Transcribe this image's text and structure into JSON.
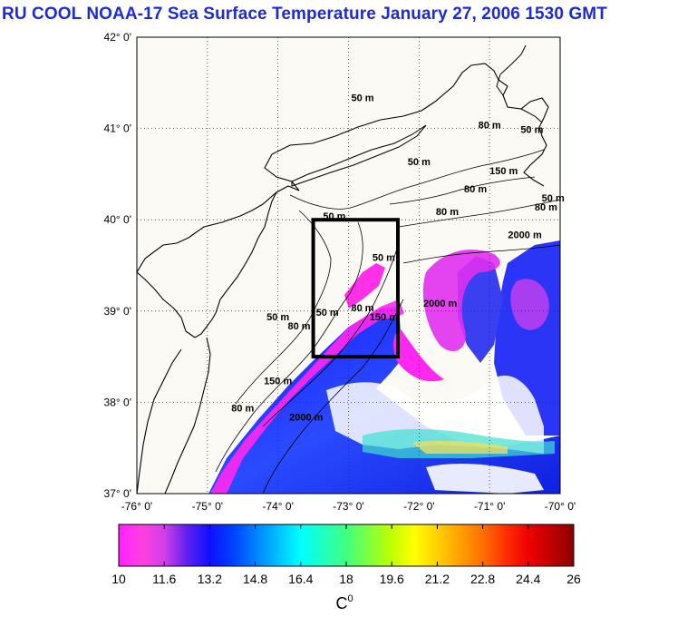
{
  "title": "RU COOL  NOAA-17 Sea Surface Temperature January 27, 2006 1530 GMT",
  "map": {
    "lon_range": [
      -76,
      -70
    ],
    "lat_range": [
      37,
      42
    ],
    "lat_ticks": [
      "42° 0'",
      "41° 0'",
      "40° 0'",
      "39° 0'",
      "38° 0'",
      "37° 0'"
    ],
    "lon_ticks": [
      "-76° 0'",
      "-75° 0'",
      "-74° 0'",
      "-73° 0'",
      "-72° 0'",
      "-71° 0'",
      "-70° 0'"
    ],
    "grid": true,
    "study_box": {
      "lon": [
        -73.5,
        -72.3
      ],
      "lat": [
        38.5,
        40.0
      ]
    },
    "land_color": "#fbfaf4",
    "contour_labels": [
      {
        "text": "50 m",
        "lon": -72.8,
        "lat": 41.3
      },
      {
        "text": "50 m",
        "lon": -72.0,
        "lat": 40.6
      },
      {
        "text": "80 m",
        "lon": -71.2,
        "lat": 40.3
      },
      {
        "text": "80 m",
        "lon": -71.6,
        "lat": 40.05
      },
      {
        "text": "150 m",
        "lon": -70.8,
        "lat": 40.5
      },
      {
        "text": "50 m",
        "lon": -70.4,
        "lat": 40.95
      },
      {
        "text": "80 m",
        "lon": -71.0,
        "lat": 41.0
      },
      {
        "text": "80 m",
        "lon": -70.2,
        "lat": 40.1
      },
      {
        "text": "50 m",
        "lon": -70.1,
        "lat": 40.2
      },
      {
        "text": "2000 m",
        "lon": -70.5,
        "lat": 39.8
      },
      {
        "text": "2000 m",
        "lon": -71.7,
        "lat": 39.05
      },
      {
        "text": "150 m",
        "lon": -72.5,
        "lat": 38.9
      },
      {
        "text": "80 m",
        "lon": -72.8,
        "lat": 39.0
      },
      {
        "text": "50 m",
        "lon": -73.3,
        "lat": 38.95
      },
      {
        "text": "50 m",
        "lon": -74.0,
        "lat": 38.9
      },
      {
        "text": "80 m",
        "lon": -73.7,
        "lat": 38.8
      },
      {
        "text": "150 m",
        "lon": -74.0,
        "lat": 38.2
      },
      {
        "text": "80 m",
        "lon": -74.5,
        "lat": 37.9
      },
      {
        "text": "2000 m",
        "lon": -73.6,
        "lat": 37.8
      },
      {
        "text": "50 m",
        "lon": -73.2,
        "lat": 40.0
      },
      {
        "text": "50 m",
        "lon": -72.5,
        "lat": 39.55
      }
    ]
  },
  "colorbar": {
    "tick_labels": [
      "10",
      "11.6",
      "13.2",
      "14.8",
      "16.4",
      "18",
      "19.6",
      "21.2",
      "22.8",
      "24.4",
      "26"
    ],
    "range": [
      10,
      26
    ],
    "unit": "C",
    "unit_sup": "0",
    "colors": [
      "#ff20ff",
      "#ff40e0",
      "#d040e8",
      "#6020f0",
      "#1010ff",
      "#0040ff",
      "#0080ff",
      "#00c0ff",
      "#00ffff",
      "#20ffc0",
      "#40ff80",
      "#80ff40",
      "#c0ff00",
      "#ffff00",
      "#ffd000",
      "#ffa000",
      "#ff7000",
      "#ff3000",
      "#f00000",
      "#c00000",
      "#8a0000"
    ]
  }
}
